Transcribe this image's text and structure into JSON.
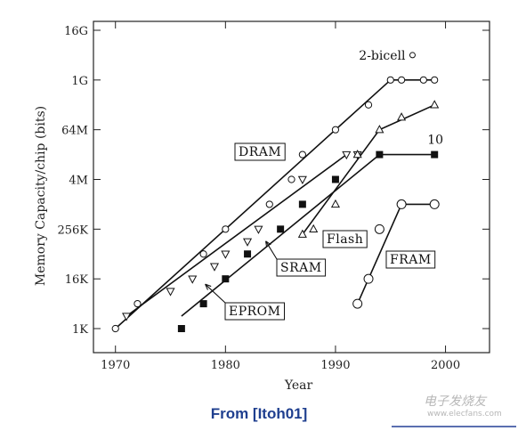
{
  "chart_data": {
    "type": "line",
    "xlabel": "Year",
    "ylabel": "Memory Capacity/chip (bits)",
    "xlim": [
      1968,
      2004
    ],
    "xticks": [
      "1970",
      "1980",
      "1990",
      "2000"
    ],
    "y_scale": "log",
    "ylim_bits": [
      1024,
      17179869184
    ],
    "yticks": [
      {
        "label": "1K",
        "bits": 1024
      },
      {
        "label": "16K",
        "bits": 16384
      },
      {
        "label": "256K",
        "bits": 262144
      },
      {
        "label": "4M",
        "bits": 4194304
      },
      {
        "label": "64M",
        "bits": 67108864
      },
      {
        "label": "1G",
        "bits": 1073741824
      },
      {
        "label": "16G",
        "bits": 17179869184
      }
    ],
    "grid": false,
    "series": [
      {
        "name": "DRAM",
        "marker": "circle-open",
        "points": [
          [
            1970,
            1024
          ],
          [
            1972,
            4096
          ],
          [
            1978,
            65536
          ],
          [
            1980,
            262144
          ],
          [
            1984,
            1048576
          ],
          [
            1986,
            4194304
          ],
          [
            1987,
            16777216
          ],
          [
            1990,
            67108864
          ],
          [
            1993,
            268435456
          ],
          [
            1995,
            1073741824
          ],
          [
            1996,
            1073741824
          ],
          [
            1998,
            1073741824
          ],
          [
            1999,
            1073741824
          ]
        ],
        "fit": [
          [
            1970,
            1024
          ],
          [
            1995,
            1073741824
          ]
        ],
        "flat": [
          [
            1995,
            1073741824
          ],
          [
            1999,
            1073741824
          ]
        ]
      },
      {
        "name": "SRAM",
        "marker": "triangle-down-open",
        "points": [
          [
            1971,
            2048
          ],
          [
            1975,
            8192
          ],
          [
            1977,
            16384
          ],
          [
            1979,
            32768
          ],
          [
            1980,
            65536
          ],
          [
            1982,
            131072
          ],
          [
            1983,
            262144
          ],
          [
            1987,
            4194304
          ],
          [
            1991,
            16777216
          ],
          [
            1992,
            16777216
          ]
        ],
        "fit": [
          [
            1971,
            2048
          ],
          [
            1991,
            16777216
          ]
        ]
      },
      {
        "name": "EPROM",
        "marker": "square-filled",
        "points": [
          [
            1976,
            1024
          ],
          [
            1978,
            4096
          ],
          [
            1980,
            16384
          ],
          [
            1982,
            65536
          ],
          [
            1985,
            262144
          ],
          [
            1987,
            1048576
          ],
          [
            1990,
            4194304
          ],
          [
            1994,
            16777216
          ],
          [
            1999,
            16777216
          ]
        ],
        "fit": [
          [
            1976,
            2048
          ],
          [
            1994,
            16777216
          ]
        ],
        "flat": [
          [
            1994,
            16777216
          ],
          [
            1999,
            16777216
          ]
        ]
      },
      {
        "name": "Flash",
        "marker": "triangle-up-open",
        "points": [
          [
            1987,
            196608
          ],
          [
            1988,
            262144
          ],
          [
            1990,
            1048576
          ],
          [
            1992,
            16777216
          ],
          [
            1994,
            67108864
          ],
          [
            1996,
            134217728
          ],
          [
            1999,
            268435456
          ]
        ],
        "fit": [
          [
            1987,
            196608
          ],
          [
            1994,
            67108864
          ],
          [
            1999,
            268435456
          ]
        ]
      },
      {
        "name": "FRAM",
        "marker": "circle-open-large",
        "points": [
          [
            1992,
            4096
          ],
          [
            1993,
            16384
          ],
          [
            1994,
            262144
          ],
          [
            1996,
            1048576
          ],
          [
            1999,
            1048576
          ]
        ],
        "fit": [
          [
            1992,
            4096
          ],
          [
            1993,
            16384
          ],
          [
            1996,
            1048576
          ],
          [
            1999,
            1048576
          ]
        ]
      }
    ],
    "annotations": [
      {
        "text": "2-bicell",
        "point": [
          1997,
          4294967296
        ],
        "marker": "circle-open-small"
      },
      {
        "text": "10",
        "near": "EPROM end"
      }
    ]
  },
  "caption": "From [Itoh01]",
  "watermark": {
    "title": "电子发烧友",
    "url": "www.elecfans.com"
  }
}
